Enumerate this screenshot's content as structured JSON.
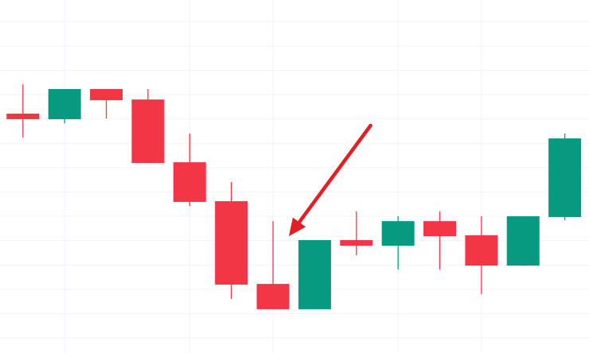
{
  "chart_data": {
    "type": "candlestick",
    "title": "",
    "xlabel": "",
    "ylabel": "",
    "ylim": [
      -0.62,
      13.89
    ],
    "xlim": [
      -0.55,
      13.58
    ],
    "grid": true,
    "y_gridlines": [
      0,
      1,
      2,
      3,
      4,
      5,
      6,
      7,
      8,
      9,
      10,
      11,
      12,
      13
    ],
    "x_gridlines_at": [
      1,
      4,
      6,
      9,
      11
    ],
    "colors": {
      "up": "#089981",
      "down": "#f23645",
      "grid": "#f0f3fa",
      "arrow": "#e31e24",
      "background": "#ffffff"
    },
    "candles": [
      {
        "o": 9.22,
        "h": 10.42,
        "l": 8.24,
        "c": 8.99
      },
      {
        "o": 8.99,
        "h": 10.23,
        "l": 8.82,
        "c": 10.23
      },
      {
        "o": 10.23,
        "h": 10.23,
        "l": 9.02,
        "c": 9.77
      },
      {
        "o": 9.8,
        "h": 10.23,
        "l": 7.19,
        "c": 7.19
      },
      {
        "o": 7.22,
        "h": 8.4,
        "l": 5.42,
        "c": 5.59
      },
      {
        "o": 5.62,
        "h": 6.41,
        "l": 1.6,
        "c": 2.19
      },
      {
        "o": 2.22,
        "h": 4.8,
        "l": 1.18,
        "c": 1.18
      },
      {
        "o": 1.18,
        "h": 4.02,
        "l": 1.18,
        "c": 4.02
      },
      {
        "o": 4.02,
        "h": 5.2,
        "l": 3.4,
        "c": 3.79
      },
      {
        "o": 3.79,
        "h": 5.0,
        "l": 2.81,
        "c": 4.8
      },
      {
        "o": 4.8,
        "h": 5.2,
        "l": 2.81,
        "c": 4.18
      },
      {
        "o": 4.22,
        "h": 5.0,
        "l": 1.8,
        "c": 2.97
      },
      {
        "o": 2.97,
        "h": 5.0,
        "l": 2.97,
        "c": 5.0
      },
      {
        "o": 4.97,
        "h": 8.4,
        "l": 4.84,
        "c": 8.2
      }
    ],
    "annotations": [
      {
        "type": "arrow",
        "from": {
          "x": 8.34,
          "y": 8.73
        },
        "to": {
          "x": 6.38,
          "y": 4.18
        }
      }
    ]
  }
}
